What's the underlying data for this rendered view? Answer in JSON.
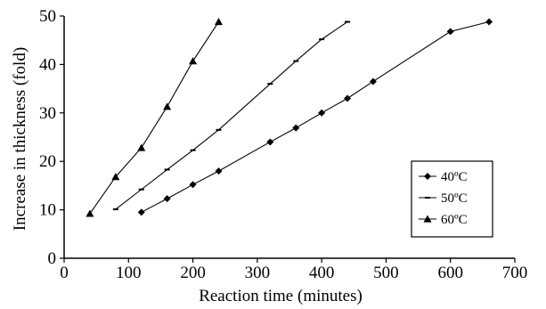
{
  "chart_data": {
    "type": "line",
    "title": "",
    "xlabel": "Reaction time (minutes)",
    "ylabel": "Increase in thickness (fold)",
    "xlim": [
      0,
      700
    ],
    "ylim": [
      0,
      50
    ],
    "x_ticks": [
      "0",
      "100",
      "200",
      "300",
      "400",
      "500",
      "600",
      "700"
    ],
    "y_ticks": [
      "0",
      "10",
      "20",
      "30",
      "40",
      "50"
    ],
    "grid": false,
    "legend_position": "right-lower",
    "series": [
      {
        "name": "40ºC",
        "marker": "diamond",
        "x": [
          120,
          160,
          200,
          240,
          320,
          360,
          400,
          440,
          480,
          600,
          660
        ],
        "y": [
          9.5,
          12.3,
          15.2,
          18.0,
          24.0,
          26.9,
          30.0,
          33.0,
          36.5,
          46.8,
          48.8
        ]
      },
      {
        "name": "50ºC",
        "marker": "dash",
        "x": [
          80,
          120,
          160,
          200,
          240,
          320,
          360,
          400,
          440
        ],
        "y": [
          10.1,
          14.2,
          18.3,
          22.3,
          26.5,
          36.0,
          40.7,
          45.2,
          48.8
        ]
      },
      {
        "name": "60ºC",
        "marker": "triangle",
        "x": [
          40,
          80,
          120,
          160,
          200,
          240
        ],
        "y": [
          9.2,
          16.8,
          22.8,
          31.3,
          40.7,
          48.8
        ]
      }
    ]
  }
}
